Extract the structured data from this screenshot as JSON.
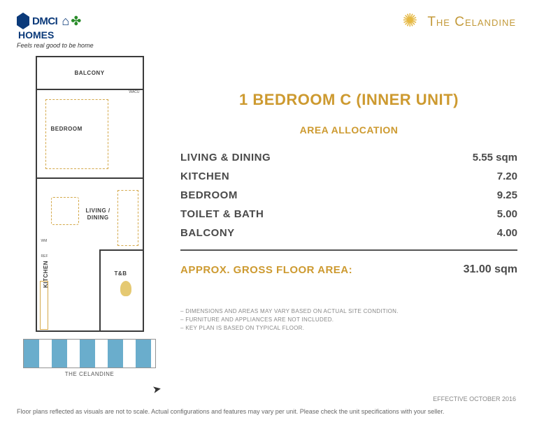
{
  "brand": {
    "dmci": "DMCI",
    "homes": "HOMES",
    "tagline": "Feels real good to be home",
    "celandine": "The Celandine"
  },
  "floorplan": {
    "labels": {
      "balcony": "BALCONY",
      "bedroom": "BEDROOM",
      "living": "LIVING /\nDINING",
      "kitchen": "KITCHEN",
      "tb": "T&B",
      "wacu": "WACU",
      "wm": "WM",
      "ref": "REF"
    },
    "keyplan_caption": "THE CELANDINE",
    "colors": {
      "wall": "#3b3b3b",
      "furniture_stroke": "#d4a84a",
      "fixture_fill": "#e5c972",
      "keyplan_accent": "#5aa5c7"
    }
  },
  "info": {
    "unit_title": "1 BEDROOM C (INNER UNIT)",
    "area_heading": "AREA ALLOCATION",
    "rows": [
      {
        "label": "LIVING & DINING",
        "value": "5.55 sqm"
      },
      {
        "label": "KITCHEN",
        "value": "7.20"
      },
      {
        "label": "BEDROOM",
        "value": "9.25"
      },
      {
        "label": "TOILET & BATH",
        "value": "5.00"
      },
      {
        "label": "BALCONY",
        "value": "4.00"
      }
    ],
    "gross_label": "APPROX. GROSS FLOOR AREA:",
    "gross_value": "31.00 sqm",
    "notes": [
      "– DIMENSIONS AND AREAS MAY VARY BASED ON ACTUAL SITE CONDITION.",
      "– FURNITURE AND APPLIANCES ARE NOT INCLUDED.",
      "– KEY PLAN IS BASED ON TYPICAL FLOOR."
    ],
    "effective": "EFFECTIVE OCTOBER 2016",
    "disclaimer": "Floor plans reflected as visuals are not to scale. Actual configurations and features may vary per unit. Please check the unit specifications with your seller.",
    "colors": {
      "accent": "#cd9a30",
      "text": "#4a4a4a",
      "muted": "#888888"
    }
  }
}
